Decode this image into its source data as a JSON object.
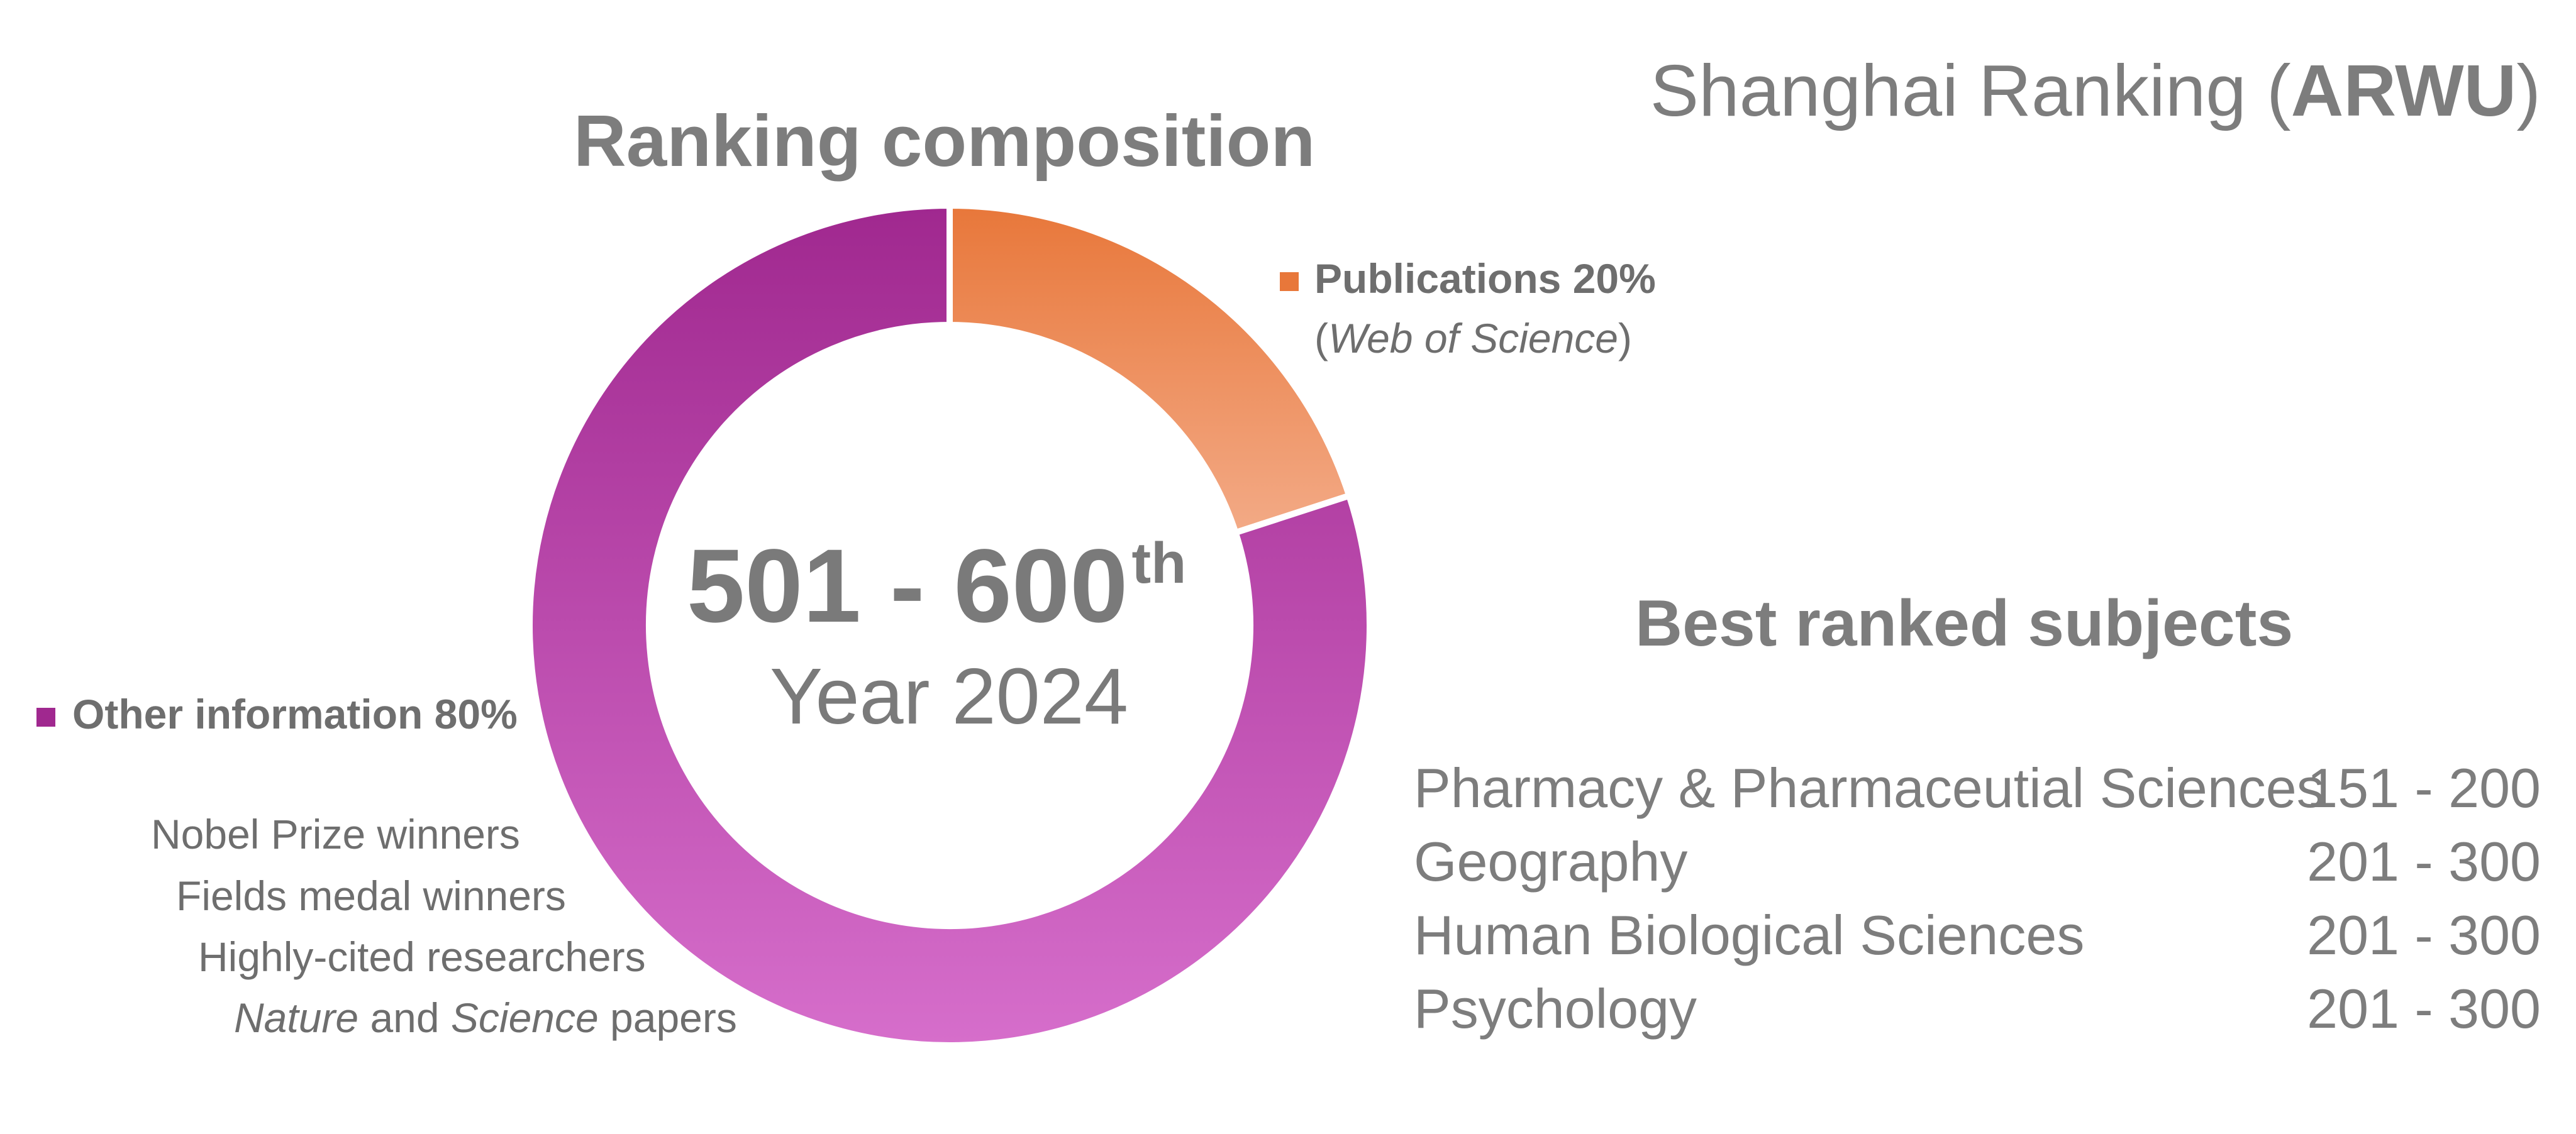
{
  "header": {
    "title_prefix": "Shanghai Ranking (",
    "title_bold": "ARWU",
    "title_suffix": ")"
  },
  "chart_data": {
    "type": "pie",
    "title": "Ranking composition",
    "hole": true,
    "slices": [
      {
        "label": "Publications 20%",
        "value": 20,
        "note_prefix": "(",
        "note_italic": "Web of Science",
        "note_suffix": ")",
        "color_top": "#e8773a",
        "color_bottom": "#f3aa86"
      },
      {
        "label": "Other information 80%",
        "value": 80,
        "color_top": "#a0288f",
        "color_bottom": "#d66ecb"
      }
    ],
    "other_details": {
      "line1": "Nobel Prize winners",
      "line2": "Fields medal winners",
      "line3": "Highly-cited researchers",
      "line4_italic1": "Nature",
      "line4_mid": " and ",
      "line4_italic2": "Science",
      "line4_end": " papers"
    },
    "center": {
      "rank": "501 - 600",
      "rank_suffix": "th",
      "year": "Year 2024"
    }
  },
  "subjects": {
    "heading": "Best ranked subjects",
    "items": [
      {
        "name": "Pharmacy & Pharmaceutial Sciences",
        "rank": "151 - 200"
      },
      {
        "name": "Geography",
        "rank": "201 - 300"
      },
      {
        "name": "Human Biological Sciences",
        "rank": "201 - 300"
      },
      {
        "name": "Psychology",
        "rank": "201 - 300"
      }
    ]
  }
}
